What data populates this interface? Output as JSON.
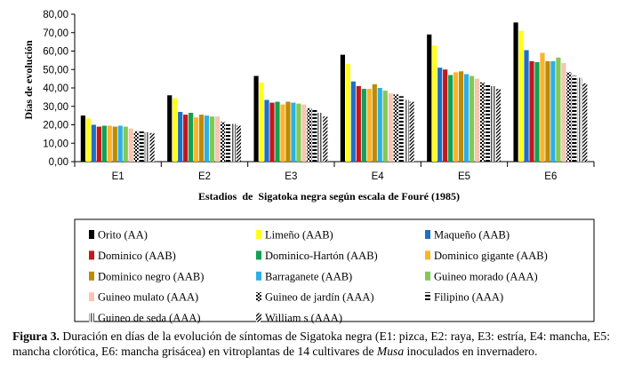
{
  "chart_data": {
    "type": "bar",
    "categories": [
      "E1",
      "E2",
      "E3",
      "E4",
      "E5",
      "E6"
    ],
    "ylabel": "Días de evolución",
    "xlabel": "Estadios  de  Sigatoka negra según escala de Fouré (1985)",
    "ylim": [
      0,
      80
    ],
    "yticks": [
      "0,00",
      "10,00",
      "20,00",
      "30,00",
      "40,00",
      "50,00",
      "60,00",
      "70,00",
      "80,00"
    ],
    "grid": false,
    "legend_position": "bottom",
    "series": [
      {
        "name": "Orito (AA)",
        "color": "#000000",
        "pattern": "solid",
        "values": [
          25,
          36,
          46.5,
          58,
          69,
          75.5
        ]
      },
      {
        "name": "Limeño (AAB)",
        "color": "#ffff1a",
        "pattern": "solid",
        "values": [
          23.5,
          34.5,
          43,
          53,
          63,
          71
        ]
      },
      {
        "name": "Maqueño (AAB)",
        "color": "#1f6fc7",
        "pattern": "solid",
        "values": [
          20,
          27,
          33.5,
          43.5,
          51,
          60.5
        ]
      },
      {
        "name": "Dominico (AAB)",
        "color": "#c4161c",
        "pattern": "solid",
        "values": [
          19,
          25.5,
          32,
          41,
          50,
          54.5
        ]
      },
      {
        "name": "Dominico-Hartón (AAB)",
        "color": "#11a152",
        "pattern": "solid",
        "values": [
          19.5,
          26.5,
          32.5,
          39.5,
          47,
          54
        ]
      },
      {
        "name": "Dominico gigante (AAB)",
        "color": "#ffb32b",
        "pattern": "solid",
        "values": [
          19.5,
          24,
          31,
          39.5,
          48.5,
          59
        ]
      },
      {
        "name": "Dominico negro (AAB)",
        "color": "#bf8b00",
        "pattern": "solid",
        "values": [
          19,
          25.5,
          32.5,
          42,
          49,
          54.5
        ]
      },
      {
        "name": "Barraganete (AAB)",
        "color": "#2cb0e6",
        "pattern": "solid",
        "values": [
          19.5,
          25,
          32,
          40,
          47.5,
          54.5
        ]
      },
      {
        "name": "Guineo morado (AAA)",
        "color": "#82c955",
        "pattern": "solid",
        "values": [
          19,
          24.5,
          31.5,
          38.5,
          46.5,
          56.5
        ]
      },
      {
        "name": "Guineo mulato (AAA)",
        "color": "#f6c6b0",
        "pattern": "solid",
        "values": [
          18,
          24.5,
          31,
          37,
          45,
          53.5
        ]
      },
      {
        "name": "Guineo de jardín (AAA)",
        "color": "#000000",
        "pattern": "check",
        "values": [
          16.5,
          21.5,
          29,
          36.5,
          43,
          48.5
        ]
      },
      {
        "name": "Filipino (AAA)",
        "color": "#000000",
        "pattern": "hstripe",
        "values": [
          17,
          21,
          28,
          35.5,
          42,
          46.5
        ]
      },
      {
        "name": "Guineo de seda (AAA)",
        "color": "#555555",
        "pattern": "vstripe",
        "values": [
          16,
          20.5,
          26.5,
          33.5,
          41,
          45.5
        ]
      },
      {
        "name": "William s (AAA)",
        "color": "#000000",
        "pattern": "diag",
        "values": [
          15.5,
          19.5,
          24.5,
          32.5,
          39.5,
          42.5
        ]
      }
    ]
  },
  "caption": {
    "label": "Figura 3.",
    "text_before": " Duración en días de la evolución de síntomas de Sigatoka negra (E1: pizca, E2: raya, E3: estría, E4: mancha, E5: mancha clorótica, E6: mancha grisácea) en vitroplantas de 14 cultivares de ",
    "italic": "Musa",
    "text_after": " inoculados en invernadero."
  }
}
